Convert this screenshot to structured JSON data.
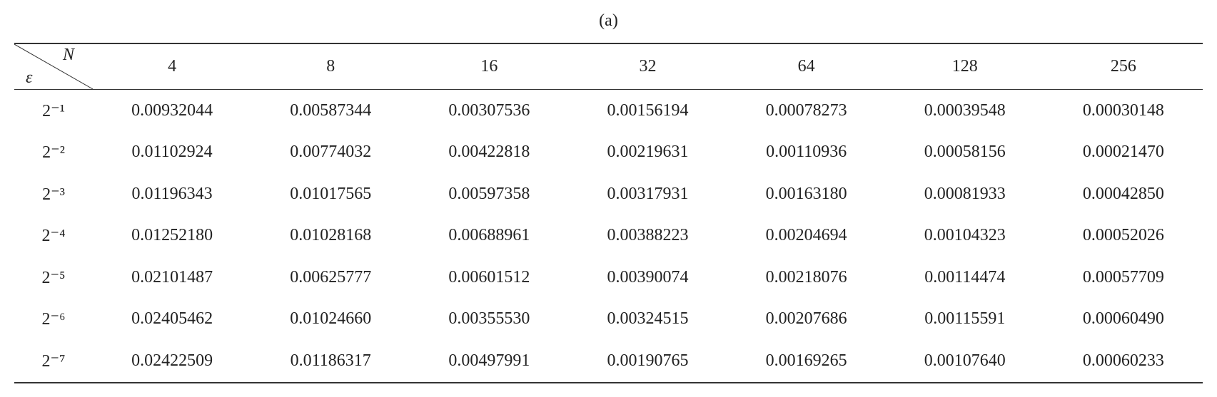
{
  "caption": "(a)",
  "table": {
    "corner_top": "N",
    "corner_bottom": "ε",
    "columns": [
      "4",
      "8",
      "16",
      "32",
      "64",
      "128",
      "256"
    ],
    "row_labels": [
      "2⁻¹",
      "2⁻²",
      "2⁻³",
      "2⁻⁴",
      "2⁻⁵",
      "2⁻⁶",
      "2⁻⁷"
    ],
    "rows": [
      [
        "0.00932044",
        "0.00587344",
        "0.00307536",
        "0.00156194",
        "0.00078273",
        "0.00039548",
        "0.00030148"
      ],
      [
        "0.01102924",
        "0.00774032",
        "0.00422818",
        "0.00219631",
        "0.00110936",
        "0.00058156",
        "0.00021470"
      ],
      [
        "0.01196343",
        "0.01017565",
        "0.00597358",
        "0.00317931",
        "0.00163180",
        "0.00081933",
        "0.00042850"
      ],
      [
        "0.01252180",
        "0.01028168",
        "0.00688961",
        "0.00388223",
        "0.00204694",
        "0.00104323",
        "0.00052026"
      ],
      [
        "0.02101487",
        "0.00625777",
        "0.00601512",
        "0.00390074",
        "0.00218076",
        "0.00114474",
        "0.00057709"
      ],
      [
        "0.02405462",
        "0.01024660",
        "0.00355530",
        "0.00324515",
        "0.00207686",
        "0.00115591",
        "0.00060490"
      ],
      [
        "0.02422509",
        "0.01186317",
        "0.00497991",
        "0.00190765",
        "0.00169265",
        "0.00107640",
        "0.00060233"
      ]
    ]
  }
}
